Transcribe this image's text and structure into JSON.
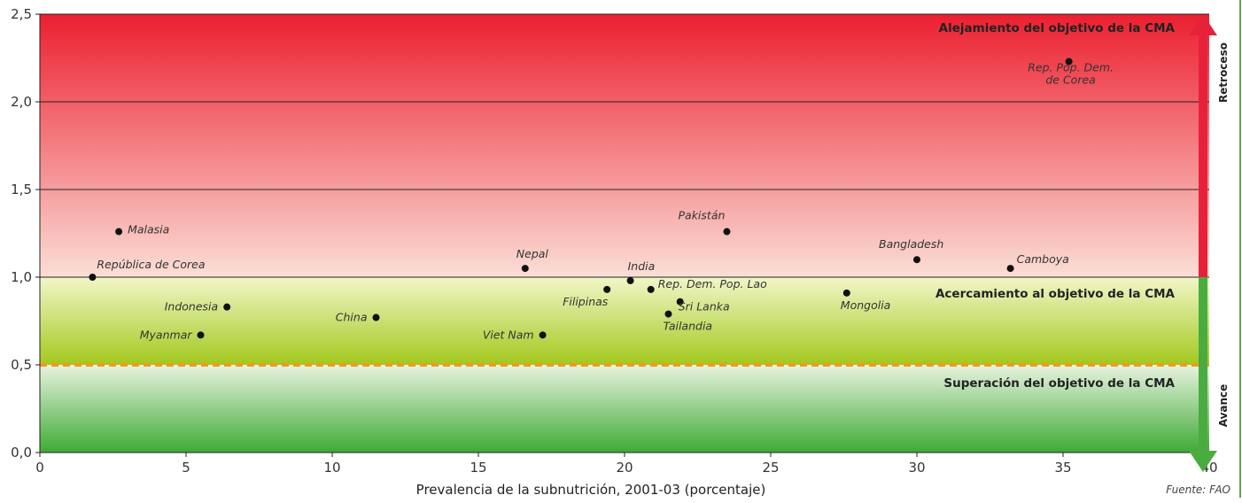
{
  "chart_data": {
    "type": "scatter",
    "xlabel": "Prevalencia de la subnutrición, 2001-03 (porcentaje)",
    "ylabel": "",
    "xlim": [
      0,
      40
    ],
    "ylim": [
      0,
      2.5
    ],
    "x_ticks": [
      "0",
      "5",
      "10",
      "15",
      "20",
      "25",
      "30",
      "35",
      "40"
    ],
    "y_ticks": [
      "0,0",
      "0,5",
      "1,0",
      "1,5",
      "2,0",
      "2,5"
    ],
    "target_line": 0.5,
    "zones": {
      "top": "Alejamiento del objetivo de la CMA",
      "middle": "Acercamiento al objetivo de la CMA",
      "bottom": "Superación del objetivo de la CMA"
    },
    "arrow": {
      "up_label": "Retroceso",
      "down_label": "Avance",
      "up_color": "#e8213a",
      "down_color": "#4aac3f"
    },
    "source": "Fuente: FAO",
    "points": [
      {
        "label": "Rep. Pop. Dem.\nde Corea",
        "x": 35.2,
        "y": 2.23
      },
      {
        "label": "Malasia",
        "x": 2.7,
        "y": 1.26
      },
      {
        "label": "República de Corea",
        "x": 1.8,
        "y": 1.0
      },
      {
        "label": "Indonesia",
        "x": 6.4,
        "y": 0.83
      },
      {
        "label": "Myanmar",
        "x": 5.5,
        "y": 0.67
      },
      {
        "label": "China",
        "x": 11.5,
        "y": 0.77
      },
      {
        "label": "Nepal",
        "x": 16.6,
        "y": 1.05
      },
      {
        "label": "Viet Nam",
        "x": 17.2,
        "y": 0.67
      },
      {
        "label": "Filipinas",
        "x": 19.4,
        "y": 0.93
      },
      {
        "label": "India",
        "x": 20.2,
        "y": 0.98
      },
      {
        "label": "Rep. Dem. Pop. Lao",
        "x": 20.9,
        "y": 0.93
      },
      {
        "label": "Sri Lanka",
        "x": 21.9,
        "y": 0.86
      },
      {
        "label": "Tailandia",
        "x": 21.5,
        "y": 0.79
      },
      {
        "label": "Pakistán",
        "x": 23.5,
        "y": 1.26
      },
      {
        "label": "Bangladesh",
        "x": 30.0,
        "y": 1.1
      },
      {
        "label": "Mongolia",
        "x": 27.6,
        "y": 0.91
      },
      {
        "label": "Camboya",
        "x": 33.2,
        "y": 1.05
      }
    ]
  }
}
